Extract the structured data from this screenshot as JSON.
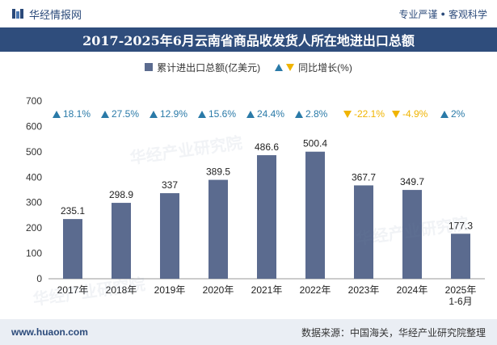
{
  "header": {
    "brand": "华经情报网",
    "tagline_left": "专业严谨",
    "tagline_right": "客观科学"
  },
  "colors": {
    "bar": "#5b6b8f",
    "up": "#2a7aa8",
    "down": "#f0b400",
    "title_bg": "#2f4d7c"
  },
  "legend": {
    "bar_label": "累计进出口总额(亿美元)",
    "growth_label": "同比增长(%)"
  },
  "chart_data": {
    "type": "bar",
    "title": "2017-2025年6月云南省商品收发货人所在地进出口总额",
    "categories": [
      "2017年",
      "2018年",
      "2019年",
      "2020年",
      "2021年",
      "2022年",
      "2023年",
      "2024年",
      "2025年\n1-6月"
    ],
    "series": [
      {
        "name": "累计进出口总额(亿美元)",
        "values": [
          235.1,
          298.9,
          337,
          389.5,
          486.6,
          500.4,
          367.7,
          349.7,
          177.3
        ]
      },
      {
        "name": "同比增长(%)",
        "values": [
          18.1,
          27.5,
          12.9,
          15.6,
          24.4,
          2.8,
          -22.1,
          -4.9,
          2
        ]
      }
    ],
    "value_labels": [
      "235.1",
      "298.9",
      "337",
      "389.5",
      "486.6",
      "500.4",
      "367.7",
      "349.7",
      "177.3"
    ],
    "growth_labels": [
      "18.1%",
      "27.5%",
      "12.9%",
      "15.6%",
      "24.4%",
      "2.8%",
      "-22.1%",
      "-4.9%",
      "2%"
    ],
    "yticks": [
      0,
      100,
      200,
      300,
      400,
      500,
      600,
      700
    ],
    "ylim": [
      0,
      700
    ]
  },
  "footer": {
    "url": "www.huaon.com",
    "source": "数据来源：中国海关，华经产业研究院整理"
  },
  "watermark_text": "华经产业研究院"
}
